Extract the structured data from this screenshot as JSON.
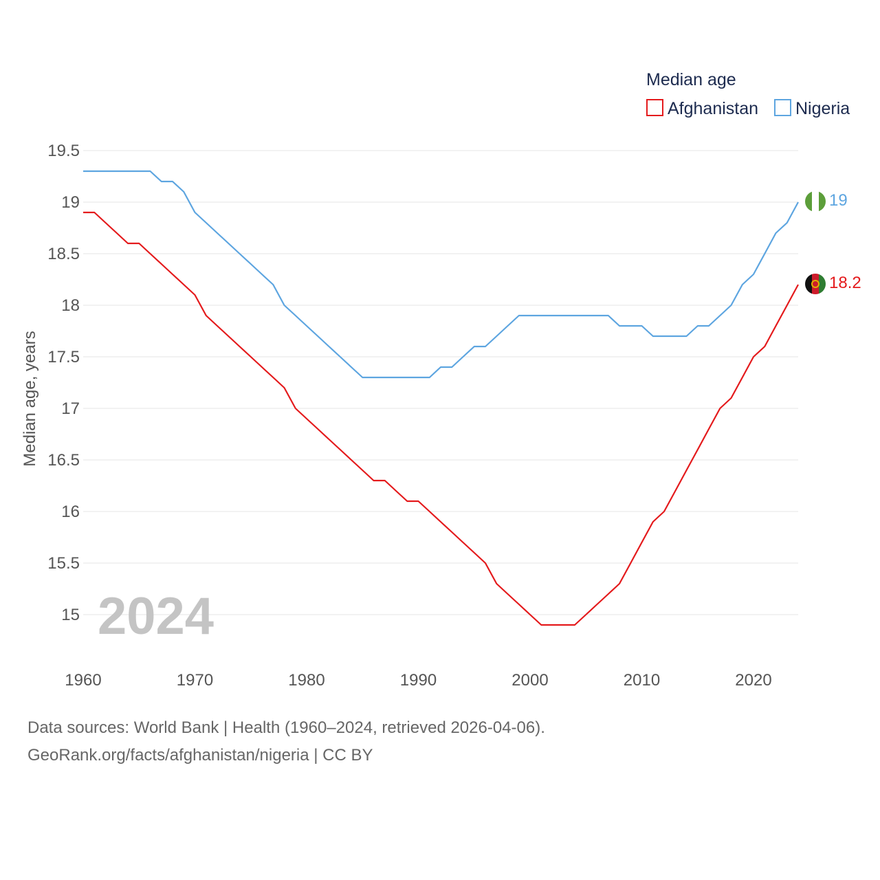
{
  "chart_data": {
    "type": "line",
    "title": "",
    "legend_title": "Median age",
    "ylabel": "Median age, years",
    "xlabel": "",
    "ylim": [
      14.5,
      19.5
    ],
    "xlim": [
      1960,
      2024
    ],
    "yticks": [
      15,
      15.5,
      16,
      16.5,
      17,
      17.5,
      18,
      18.5,
      19,
      19.5
    ],
    "ytick_labels": [
      "15",
      "15.5",
      "16",
      "16.5",
      "17",
      "17.5",
      "18",
      "18.5",
      "19",
      "19.5"
    ],
    "xticks": [
      1960,
      1970,
      1980,
      1990,
      2000,
      2010,
      2020
    ],
    "xtick_labels": [
      "1960",
      "1970",
      "1980",
      "1990",
      "2000",
      "2010",
      "2020"
    ],
    "year_watermark": "2024",
    "x": [
      1960,
      1961,
      1962,
      1963,
      1964,
      1965,
      1966,
      1967,
      1968,
      1969,
      1970,
      1971,
      1972,
      1973,
      1974,
      1975,
      1976,
      1977,
      1978,
      1979,
      1980,
      1981,
      1982,
      1983,
      1984,
      1985,
      1986,
      1987,
      1988,
      1989,
      1990,
      1991,
      1992,
      1993,
      1994,
      1995,
      1996,
      1997,
      1998,
      1999,
      2000,
      2001,
      2002,
      2003,
      2004,
      2005,
      2006,
      2007,
      2008,
      2009,
      2010,
      2011,
      2012,
      2013,
      2014,
      2015,
      2016,
      2017,
      2018,
      2019,
      2020,
      2021,
      2022,
      2023,
      2024
    ],
    "series": [
      {
        "name": "Afghanistan",
        "color": "#e41a1c",
        "end_label": "18.2",
        "values": [
          18.9,
          18.9,
          18.8,
          18.7,
          18.6,
          18.6,
          18.5,
          18.4,
          18.3,
          18.2,
          18.1,
          17.9,
          17.8,
          17.7,
          17.6,
          17.5,
          17.4,
          17.3,
          17.2,
          17.0,
          16.9,
          16.8,
          16.7,
          16.6,
          16.5,
          16.4,
          16.3,
          16.3,
          16.2,
          16.1,
          16.1,
          16.0,
          15.9,
          15.8,
          15.7,
          15.6,
          15.5,
          15.3,
          15.2,
          15.1,
          15.0,
          14.9,
          14.9,
          14.9,
          14.9,
          15.0,
          15.1,
          15.2,
          15.3,
          15.5,
          15.7,
          15.9,
          16.0,
          16.2,
          16.4,
          16.6,
          16.8,
          17.0,
          17.1,
          17.3,
          17.5,
          17.6,
          17.8,
          18.0,
          18.2
        ]
      },
      {
        "name": "Nigeria",
        "color": "#5da5e0",
        "end_label": "19",
        "values": [
          19.3,
          19.3,
          19.3,
          19.3,
          19.3,
          19.3,
          19.3,
          19.2,
          19.2,
          19.1,
          18.9,
          18.8,
          18.7,
          18.6,
          18.5,
          18.4,
          18.3,
          18.2,
          18.0,
          17.9,
          17.8,
          17.7,
          17.6,
          17.5,
          17.4,
          17.3,
          17.3,
          17.3,
          17.3,
          17.3,
          17.3,
          17.3,
          17.4,
          17.4,
          17.5,
          17.6,
          17.6,
          17.7,
          17.8,
          17.9,
          17.9,
          17.9,
          17.9,
          17.9,
          17.9,
          17.9,
          17.9,
          17.9,
          17.8,
          17.8,
          17.8,
          17.7,
          17.7,
          17.7,
          17.7,
          17.8,
          17.8,
          17.9,
          18.0,
          18.2,
          18.3,
          18.5,
          18.7,
          18.8,
          19.0
        ]
      }
    ]
  },
  "footer": {
    "line1": "Data sources: World Bank | Health (1960–2024, retrieved 2026-04-06).",
    "line2": "GeoRank.org/facts/afghanistan/nigeria | CC BY"
  }
}
